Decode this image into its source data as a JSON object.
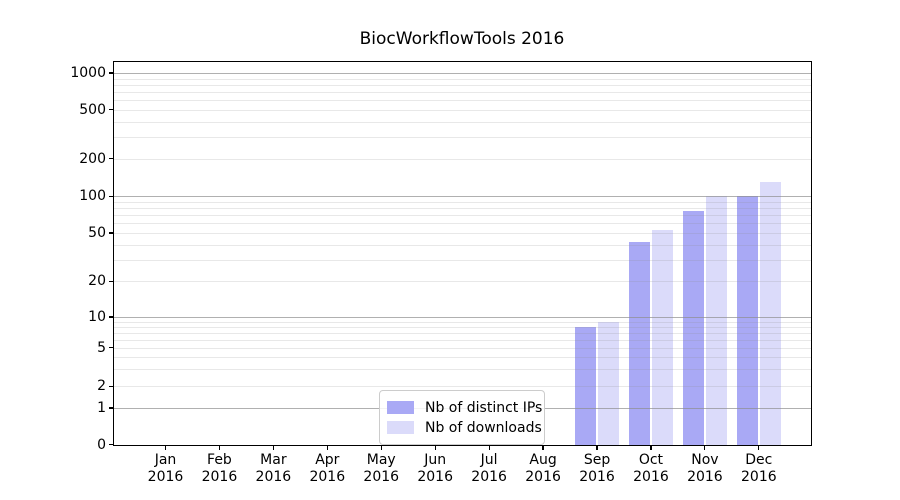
{
  "chart_data": {
    "type": "bar",
    "title": "BiocWorkflowTools 2016",
    "categories": [
      "Jan 2016",
      "Feb 2016",
      "Mar 2016",
      "Apr 2016",
      "May 2016",
      "Jun 2016",
      "Jul 2016",
      "Aug 2016",
      "Sep 2016",
      "Oct 2016",
      "Nov 2016",
      "Dec 2016"
    ],
    "series": [
      {
        "name": "Nb of distinct IPs",
        "color": "#a9a9f5",
        "values": [
          0,
          0,
          0,
          0,
          0,
          0,
          0,
          0,
          8,
          42,
          76,
          100
        ]
      },
      {
        "name": "Nb of downloads",
        "color": "#dbdbfa",
        "values": [
          0,
          0,
          0,
          0,
          0,
          0,
          0,
          0,
          9,
          53,
          100,
          130
        ]
      }
    ],
    "yticks": [
      0,
      1,
      2,
      5,
      10,
      20,
      50,
      100,
      200,
      500,
      1000
    ],
    "yscale": "symlog",
    "ylim": [
      0,
      1250
    ],
    "xlabel": "",
    "ylabel": "",
    "grid": true,
    "legend_position": "lower center"
  }
}
